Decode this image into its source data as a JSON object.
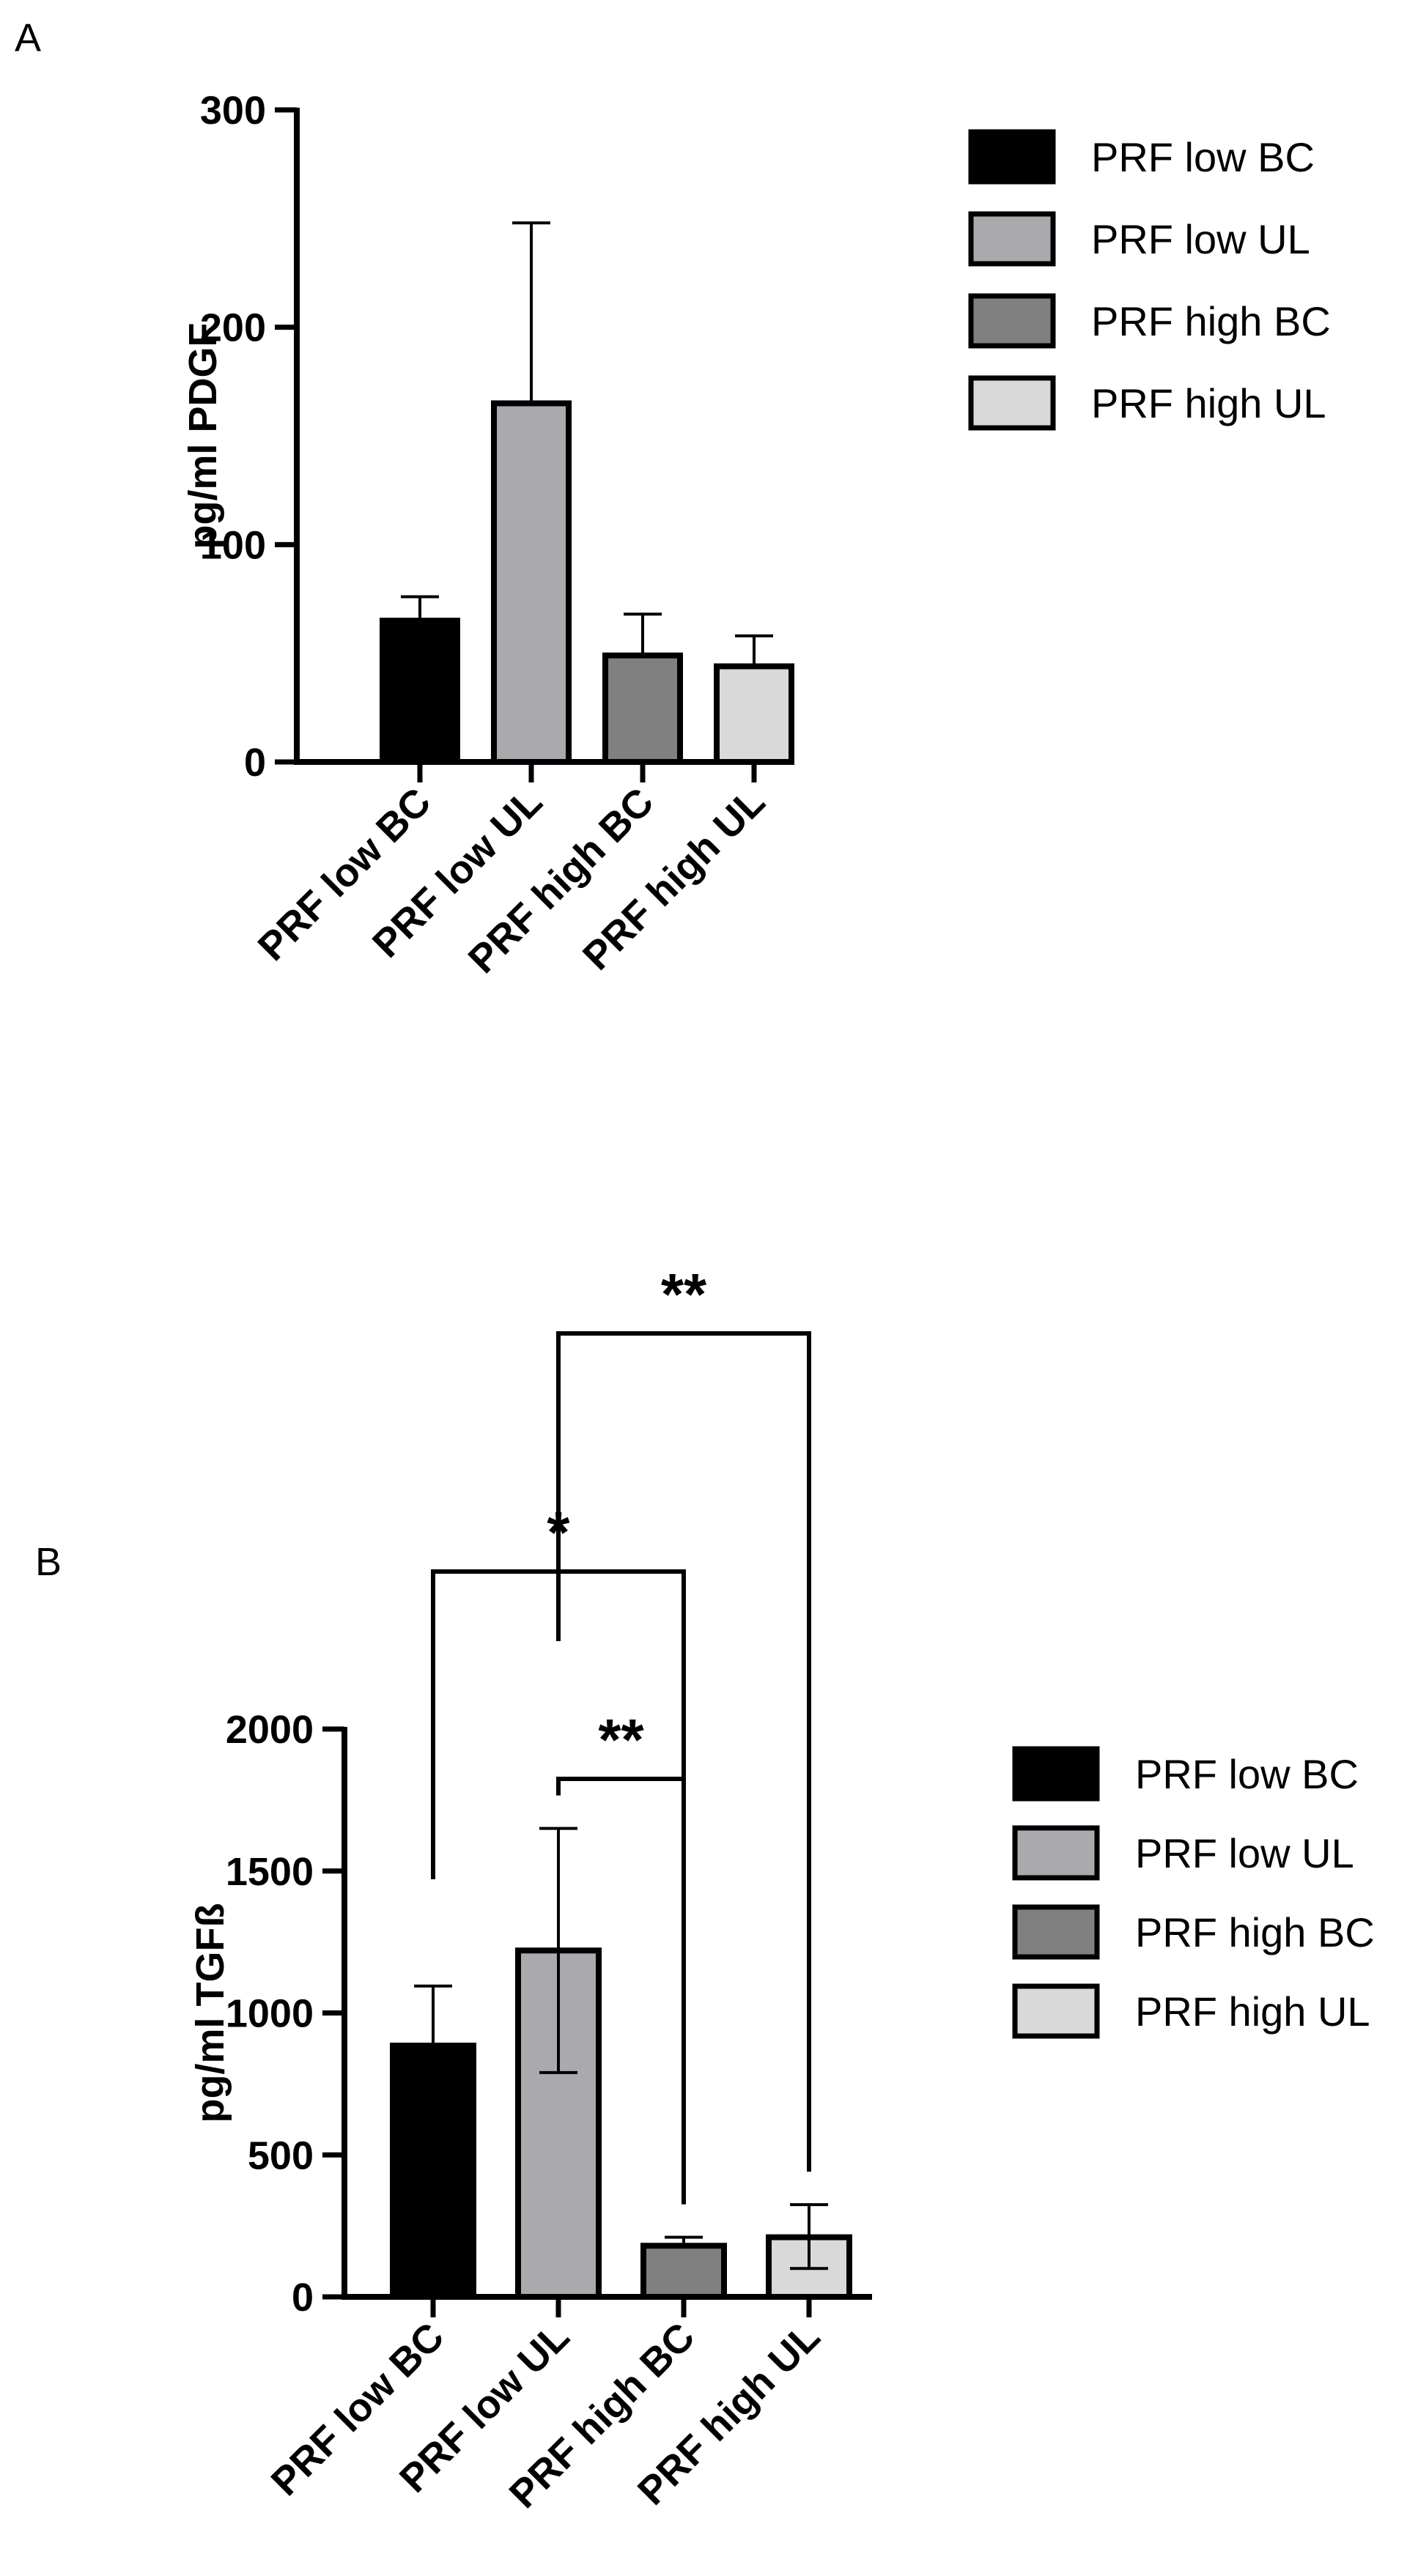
{
  "chart_data": [
    {
      "panel": "A",
      "type": "bar",
      "ylabel": "pg/ml PDGF",
      "xlabel": "",
      "ylim": [
        0,
        300
      ],
      "yticks": [
        0,
        100,
        200,
        300
      ],
      "categories": [
        "PRF low BC",
        "PRF low UL",
        "PRF high BC",
        "PRF high UL"
      ],
      "values": [
        65,
        165,
        49,
        44
      ],
      "error_plus": [
        11,
        83,
        19,
        14
      ],
      "error_minus": [
        0,
        0,
        0,
        0
      ],
      "colors": [
        "#000000",
        "#a9a9ae",
        "#808080",
        "#d9d9d9"
      ],
      "legend": [
        "PRF low BC",
        "PRF low UL",
        "PRF high BC",
        "PRF high UL"
      ],
      "legend_position": "right",
      "significance": []
    },
    {
      "panel": "B",
      "type": "bar",
      "ylabel": "pg/ml TGFß",
      "xlabel": "",
      "ylim": [
        0,
        2000
      ],
      "yticks": [
        0,
        500,
        1000,
        1500,
        2000
      ],
      "categories": [
        "PRF low BC",
        "PRF low UL",
        "PRF high BC",
        "PRF high UL"
      ],
      "values": [
        885,
        1220,
        180,
        210
      ],
      "error_plus": [
        210,
        430,
        30,
        115
      ],
      "error_minus": [
        0,
        430,
        0,
        110
      ],
      "colors": [
        "#000000",
        "#a9a9ae",
        "#808080",
        "#d9d9d9"
      ],
      "legend": [
        "PRF low BC",
        "PRF low UL",
        "PRF high BC",
        "PRF high UL"
      ],
      "legend_position": "right",
      "significance": [
        {
          "from": 1,
          "to": 2,
          "label": "**",
          "level": 1
        },
        {
          "from": 0,
          "to": 2,
          "label": "*",
          "level": 2
        },
        {
          "from": 1,
          "to": 3,
          "label": "**",
          "level": 3
        }
      ]
    }
  ]
}
